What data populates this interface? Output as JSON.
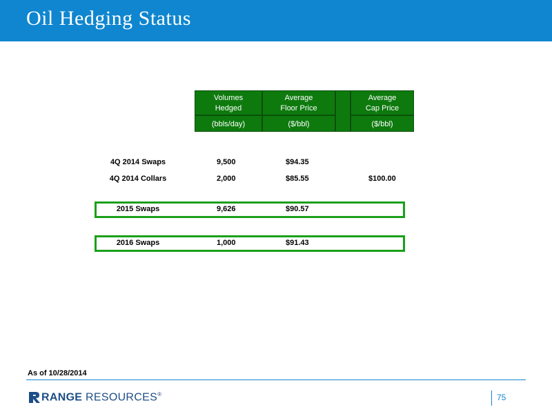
{
  "title": "Oil Hedging Status",
  "table": {
    "headers": {
      "volumes": [
        "Volumes",
        "Hedged"
      ],
      "floor": [
        "Average",
        "Floor Price"
      ],
      "cap": [
        "Average",
        "Cap Price"
      ],
      "units": [
        "(bbls/day)",
        "($/bbl)",
        "($/bbl)"
      ]
    },
    "rows": [
      {
        "label": "4Q 2014 Swaps",
        "volume": "9,500",
        "floor": "$94.35",
        "cap": ""
      },
      {
        "label": "4Q 2014 Collars",
        "volume": "2,000",
        "floor": "$85.55",
        "cap": "$100.00"
      },
      {
        "label": "2015 Swaps",
        "volume": "9,626",
        "floor": "$90.57",
        "cap": ""
      },
      {
        "label": "2016 Swaps",
        "volume": "1,000",
        "floor": "$91.43",
        "cap": ""
      }
    ]
  },
  "as_of": "As of 10/28/2014",
  "logo": {
    "bold": "RANGE",
    "rest": " RESOURCES",
    "mark": "®"
  },
  "page_number": "75",
  "colors": {
    "header_blue": "#0f86cf",
    "table_green": "#0e7a0e",
    "box_green": "#1aa01a"
  }
}
